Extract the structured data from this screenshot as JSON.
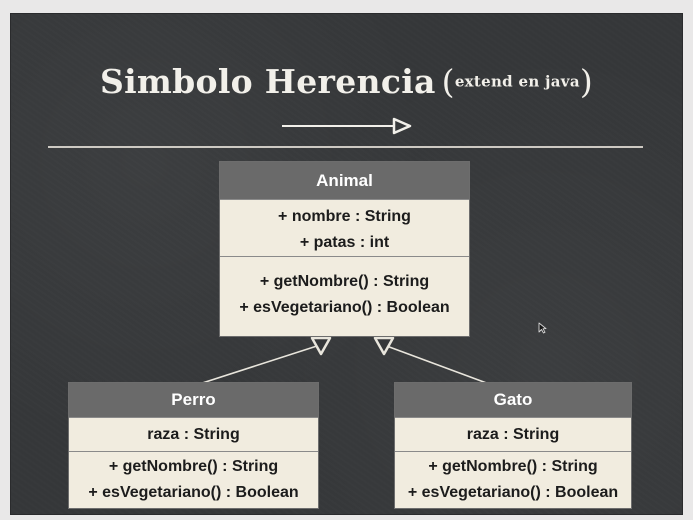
{
  "slide": {
    "title_main": "Simbolo Herencia",
    "title_paren_open": "(",
    "title_note": "extend en java",
    "title_paren_close": ")"
  },
  "classes": {
    "animal": {
      "name": "Animal",
      "attributes": [
        "+ nombre : String",
        "+ patas : int"
      ],
      "methods": [
        "+ getNombre() : String",
        "+ esVegetariano() : Boolean"
      ]
    },
    "perro": {
      "name": "Perro",
      "attributes": [
        "raza : String"
      ],
      "methods": [
        "+ getNombre() : String",
        "+ esVegetariano() : Boolean"
      ]
    },
    "gato": {
      "name": "Gato",
      "attributes": [
        "raza : String"
      ],
      "methods": [
        "+ getNombre() : String",
        "+ esVegetariano() : Boolean"
      ]
    }
  },
  "relations": [
    {
      "from": "Perro",
      "to": "Animal",
      "type": "generalization"
    },
    {
      "from": "Gato",
      "to": "Animal",
      "type": "generalization"
    }
  ],
  "colors": {
    "board": "#353739",
    "class_header": "#6a6a6a",
    "class_body": "#f1ecdf",
    "chalk": "#f2f0ea"
  },
  "icons": {
    "legend_arrow": "generalization-arrow-icon",
    "cursor": "mouse-pointer-icon"
  }
}
